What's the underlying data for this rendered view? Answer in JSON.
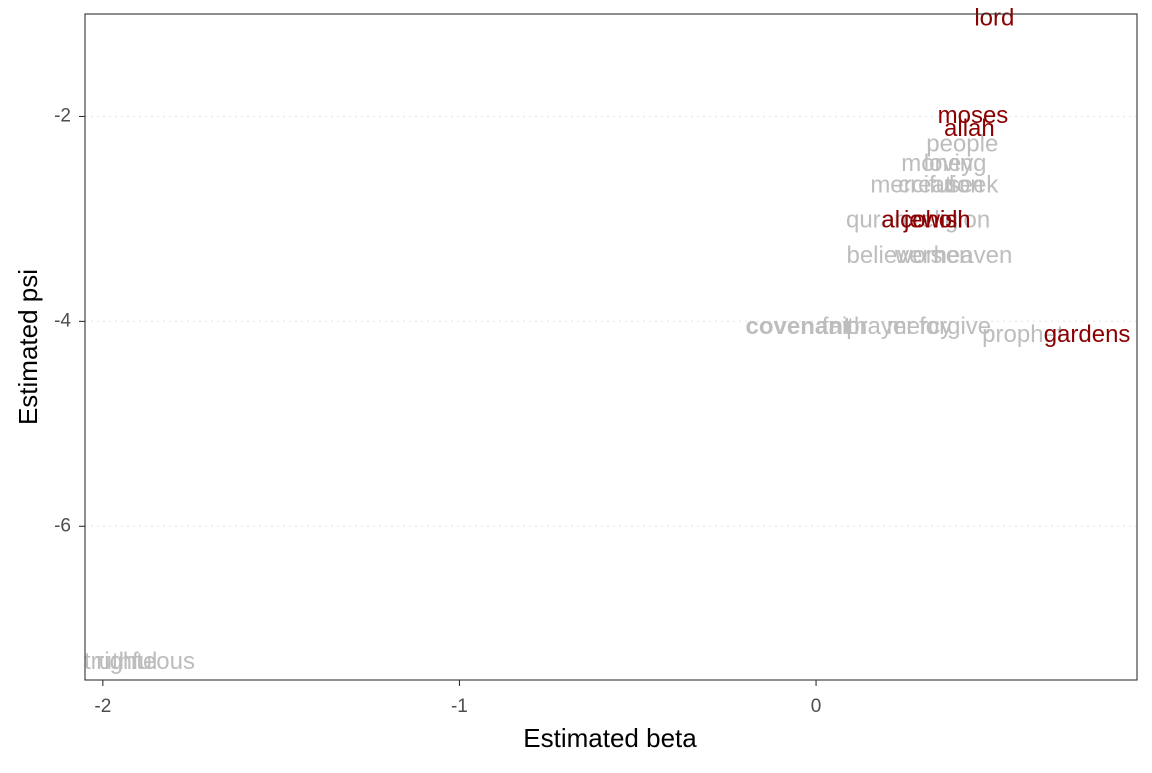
{
  "chart_data": {
    "type": "scatter",
    "title": "",
    "xlabel": "Estimated beta",
    "ylabel": "Estimated psi",
    "xlim": [
      -2.05,
      0.9
    ],
    "ylim": [
      -7.5,
      -1.0
    ],
    "x_ticks": [
      -2,
      -1,
      0
    ],
    "y_ticks": [
      -6,
      -4,
      -2
    ],
    "grid": "horizontal dotted major lines",
    "legend": "none",
    "colors": {
      "highlight": "#8b0000",
      "background": "#bdbdbd",
      "axis_text": "#4d4d4d",
      "grid": "#ebebeb"
    },
    "highlighted_words": [
      {
        "label": "lord",
        "x": 0.5,
        "y": -1.05
      },
      {
        "label": "moses",
        "x": 0.44,
        "y": -2.0
      },
      {
        "label": "allah",
        "x": 0.43,
        "y": -2.13
      },
      {
        "label": "alcohol",
        "x": 0.29,
        "y": -3.02
      },
      {
        "label": "jewish",
        "x": 0.34,
        "y": -3.02
      },
      {
        "label": "gardens",
        "x": 0.76,
        "y": -4.14
      }
    ],
    "background_words": [
      {
        "label": "people",
        "x": 0.41,
        "y": -2.28
      },
      {
        "label": "money",
        "x": 0.34,
        "y": -2.47
      },
      {
        "label": "loving",
        "x": 0.39,
        "y": -2.47
      },
      {
        "label": "merciful",
        "x": 0.27,
        "y": -2.68
      },
      {
        "label": "creation",
        "x": 0.35,
        "y": -2.68
      },
      {
        "label": "seek",
        "x": 0.44,
        "y": -2.68
      },
      {
        "label": "quran",
        "x": 0.17,
        "y": -3.02
      },
      {
        "label": "religion",
        "x": 0.38,
        "y": -3.02
      },
      {
        "label": "believers",
        "x": 0.22,
        "y": -3.37
      },
      {
        "label": "women",
        "x": 0.33,
        "y": -3.37
      },
      {
        "label": "heaven",
        "x": 0.44,
        "y": -3.37
      },
      {
        "label": "faith",
        "x": 0.08,
        "y": -4.06
      },
      {
        "label": "prayer",
        "x": 0.18,
        "y": -4.06
      },
      {
        "label": "mercy",
        "x": 0.29,
        "y": -4.06
      },
      {
        "label": "forgive",
        "x": 0.39,
        "y": -4.06
      },
      {
        "label": "prophet",
        "x": 0.58,
        "y": -4.14
      },
      {
        "label": "righteous",
        "x": -1.88,
        "y": -7.33
      },
      {
        "label": "truthful",
        "x": -1.95,
        "y": -7.33
      }
    ],
    "bold_words": [
      {
        "label": "covenant",
        "x": -0.05,
        "y": -4.06
      }
    ]
  }
}
